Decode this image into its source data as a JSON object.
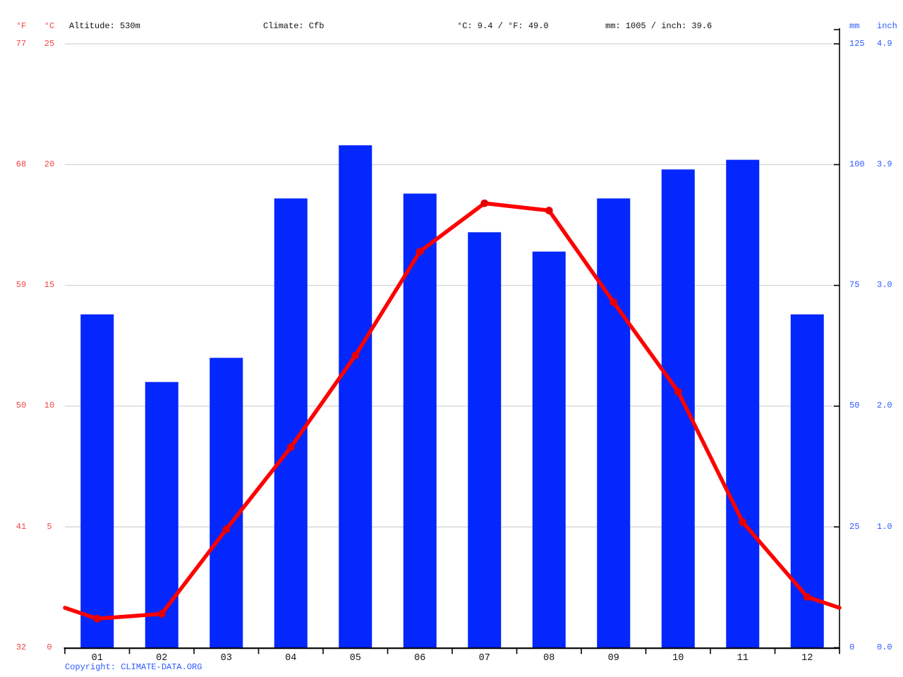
{
  "header": {
    "f_unit": "°F",
    "c_unit": "°C",
    "altitude": "Altitude: 530m",
    "climate": "Climate: Cfb",
    "temperature_summary": "°C: 9.4 / °F: 49.0",
    "precipitation_summary": "mm: 1005 / inch: 39.6",
    "mm_unit": "mm",
    "inch_unit": "inch"
  },
  "axes": {
    "left_f_ticks": [
      "77",
      "68",
      "59",
      "50",
      "41",
      "32"
    ],
    "left_c_ticks": [
      "25",
      "20",
      "15",
      "10",
      "5",
      "0"
    ],
    "right_mm_ticks": [
      "125",
      "100",
      "75",
      "50",
      "25",
      "0"
    ],
    "right_inch_ticks": [
      "4.9",
      "3.9",
      "3.0",
      "2.0",
      "1.0",
      "0.0"
    ]
  },
  "chart_data": {
    "type": "climate-bar-line",
    "categories": [
      "01",
      "02",
      "03",
      "04",
      "05",
      "06",
      "07",
      "08",
      "09",
      "10",
      "11",
      "12"
    ],
    "series": [
      {
        "name": "Precipitation",
        "type": "bar",
        "unit": "mm",
        "color": "#0327fc",
        "values": [
          69,
          55,
          60,
          93,
          104,
          94,
          86,
          82,
          93,
          99,
          101,
          69
        ]
      },
      {
        "name": "Temperature",
        "type": "line",
        "unit": "°C",
        "color": "#ff0000",
        "marker_color": "#e60000",
        "values": [
          1.2,
          1.4,
          4.9,
          8.3,
          12.1,
          16.4,
          18.4,
          18.1,
          14.3,
          10.6,
          5.2,
          2.1
        ]
      }
    ],
    "ylim_left_c": [
      0,
      25
    ],
    "ylim_right_mm": [
      0,
      125
    ],
    "grid": true,
    "legend_position": "none",
    "annotations": {
      "temperature_mean_c": 9.4,
      "temperature_mean_f": 49.0,
      "precipitation_total_mm": 1005,
      "precipitation_total_inch": 39.6
    }
  },
  "colors": {
    "bar_blue": "#0327fc",
    "line_red": "#ff0000",
    "marker_red": "#e60000",
    "axis_red_text": "#f24444",
    "axis_blue_text": "#2e58ff",
    "gridline": "#cfcfcf",
    "axis_black": "#000000"
  },
  "footer": {
    "copyright": "Copyright: CLIMATE-DATA.ORG"
  }
}
